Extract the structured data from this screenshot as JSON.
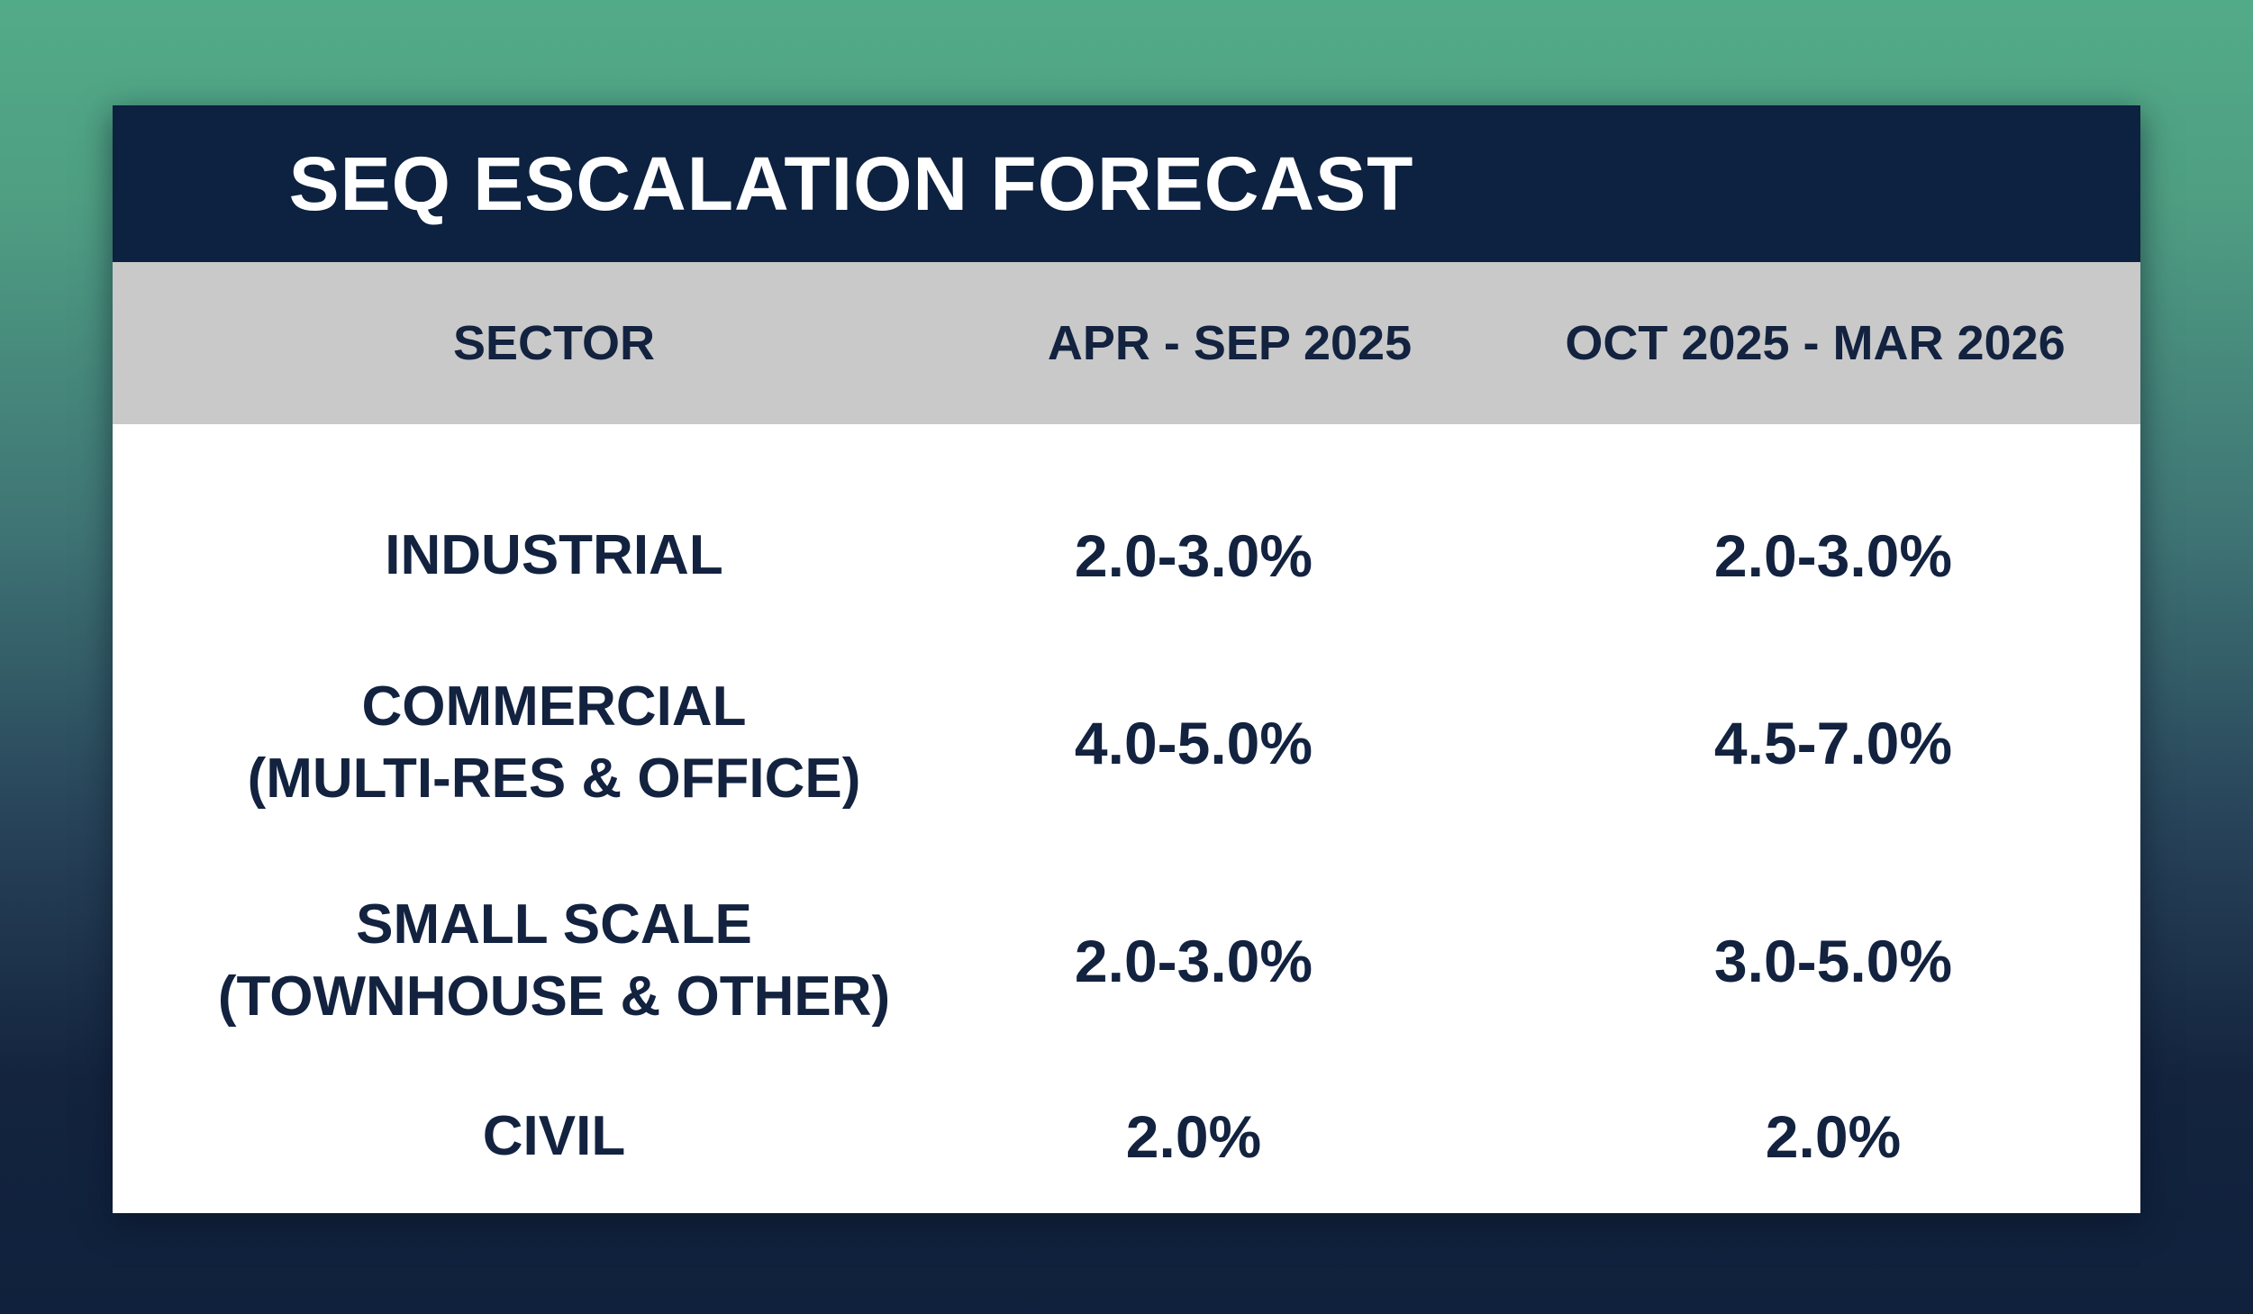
{
  "chart_data": {
    "type": "table",
    "title": "SEQ ESCALATION FORECAST",
    "columns": [
      "SECTOR",
      "APR - SEP 2025",
      "OCT 2025 - MAR 2026"
    ],
    "rows": [
      {
        "sector": [
          "INDUSTRIAL"
        ],
        "apr_sep_2025": "2.0-3.0%",
        "oct_2025_mar_2026": "2.0-3.0%"
      },
      {
        "sector": [
          "COMMERCIAL",
          "(MULTI-RES & OFFICE)"
        ],
        "apr_sep_2025": "4.0-5.0%",
        "oct_2025_mar_2026": "4.5-7.0%"
      },
      {
        "sector": [
          "SMALL SCALE",
          "(TOWNHOUSE & OTHER)"
        ],
        "apr_sep_2025": "2.0-3.0%",
        "oct_2025_mar_2026": "3.0-5.0%"
      },
      {
        "sector": [
          "CIVIL"
        ],
        "apr_sep_2025": "2.0%",
        "oct_2025_mar_2026": "2.0%"
      }
    ]
  },
  "colors": {
    "title_bar": "#0d2140",
    "header_bar": "#c9c9c9",
    "text": "#12223f",
    "background_top": "#52ab88",
    "background_bottom": "#0f213c"
  }
}
